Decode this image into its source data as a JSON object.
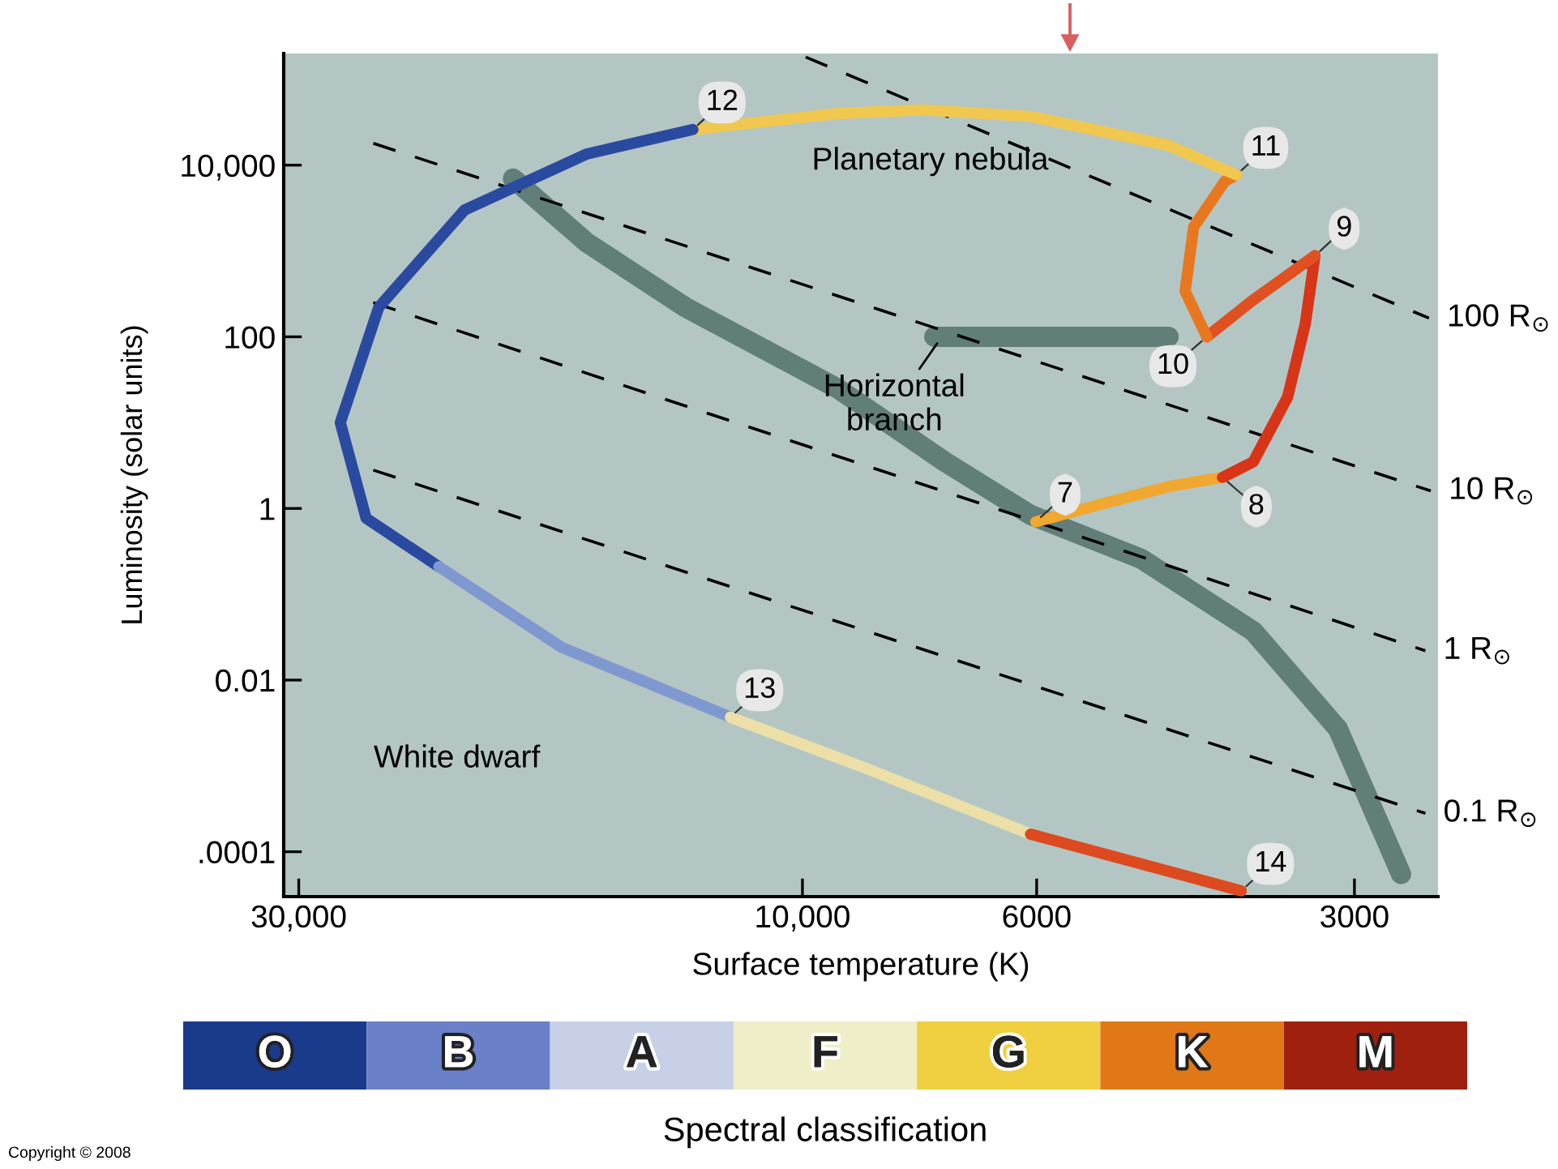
{
  "chart_data": [
    {
      "type": "line",
      "xlabel": "Surface temperature (K)",
      "ylabel": "Luminosity (solar units)",
      "log": "xy",
      "xlim": [
        31000,
        2500
      ],
      "ylim": [
        3e-05,
        200000
      ],
      "xticks": [
        {
          "value": 30000,
          "label": "30,000"
        },
        {
          "value": 10000,
          "label": "10,000"
        },
        6000,
        3000
      ],
      "yticks": [
        {
          "value": 10000,
          "label": "10,000"
        },
        100,
        1,
        0.01,
        {
          "value": 0.0001,
          "label": ".0001"
        }
      ],
      "series": [
        {
          "color": "#52716c",
          "x": [
            18800,
            16000,
            12900,
            9260,
            7330,
            6080,
            4780,
            3740,
            3110,
            2710
          ],
          "values": [
            7000,
            1250,
            220,
            25,
            3.5,
            0.84,
            0.26,
            0.037,
            0.0027,
            5.5e-05
          ]
        },
        {
          "color": "#52716c",
          "x": [
            7500,
            4500
          ],
          "values": [
            100,
            100
          ]
        },
        {
          "name": "100 R$_{⊙}$",
          "color": "#000000",
          "line_style": "dashed",
          "x": [
            9930,
            2550
          ],
          "values": [
            182000,
            165
          ]
        },
        {
          "name": "10 R$_{⊙}$",
          "color": "#000000",
          "line_style": "dashed",
          "x": [
            25500,
            2540
          ],
          "values": [
            18000,
            1.6
          ]
        },
        {
          "name": "1 R$_{⊙}$",
          "color": "#000000",
          "line_style": "dashed",
          "x": [
            25500,
            2570
          ],
          "values": [
            250,
            0.022
          ]
        },
        {
          "name": "0.1 R$_{⊙}$",
          "color": "#000000",
          "line_style": "dashed",
          "x": [
            25500,
            2570
          ],
          "values": [
            2.8,
            0.00028
          ]
        },
        {
          "color": "#f0a830",
          "x": [
            6010,
            5240,
            4500,
            4000
          ],
          "values": [
            0.7,
            1.1,
            1.8,
            2.3
          ]
        },
        {
          "color": "#d83418",
          "x": [
            4000,
            3740,
            3470,
            3340,
            3270
          ],
          "values": [
            2.3,
            3.5,
            20,
            140,
            880
          ]
        },
        {
          "color": "#e05020",
          "x": [
            3270,
            3740,
            4140
          ],
          "values": [
            880,
            270,
            100
          ]
        },
        {
          "color": "#e87820",
          "x": [
            4140,
            4340,
            4260,
            3980,
            3880
          ],
          "values": [
            100,
            340,
            1900,
            6500,
            7700
          ]
        },
        {
          "color": "#f0c850",
          "x": [
            3880,
            4500,
            6080,
            7670,
            9260,
            12700
          ],
          "values": [
            7700,
            17000,
            37000,
            44000,
            40000,
            26000
          ]
        },
        {
          "color": "#2a4aa0",
          "x": [
            12700,
            16000,
            20900,
            25200,
            27400,
            25900,
            22100
          ],
          "values": [
            26000,
            13500,
            3000,
            220,
            10,
            0.77,
            0.21
          ]
        },
        {
          "color": "#8098d0",
          "x": [
            22100,
            16900,
            11700
          ],
          "values": [
            0.21,
            0.024,
            0.0037
          ]
        },
        {
          "color": "#ece0a8",
          "x": [
            11700,
            8630,
            6080
          ],
          "values": [
            0.0037,
            0.0009,
            0.00016
          ]
        },
        {
          "color": "#dd4a20",
          "x": [
            6080,
            3840
          ],
          "values": [
            0.00016,
            3.5e-05
          ]
        }
      ],
      "annotations": [
        {
          "text": "7",
          "x": 6010,
          "y": 0.7
        },
        {
          "text": "8",
          "x": 4000,
          "y": 2.3
        },
        {
          "text": "9",
          "x": 3270,
          "y": 880
        },
        {
          "text": "10",
          "x": 4140,
          "y": 100
        },
        {
          "text": "11",
          "x": 3880,
          "y": 7700
        },
        {
          "text": "12",
          "x": 12700,
          "y": 26000
        },
        {
          "text": "13",
          "x": 11700,
          "y": 0.0037
        },
        {
          "text": "14",
          "x": 3840,
          "y": 3.5e-05
        },
        "Planetary nebula",
        "Horizontal\nbranch",
        "White dwarf",
        "Copyright © 2008"
      ]
    },
    {
      "type": "other",
      "categories": [
        "O",
        "B",
        "A",
        "F",
        "G",
        "K",
        "M"
      ],
      "colors": [
        "#1a3a8c",
        "#6a80c8",
        "#c8d0e8",
        "#f0eec8",
        "#f0d040",
        "#e07818",
        "#a02010"
      ],
      "xlabel": "Spectral classification"
    }
  ]
}
